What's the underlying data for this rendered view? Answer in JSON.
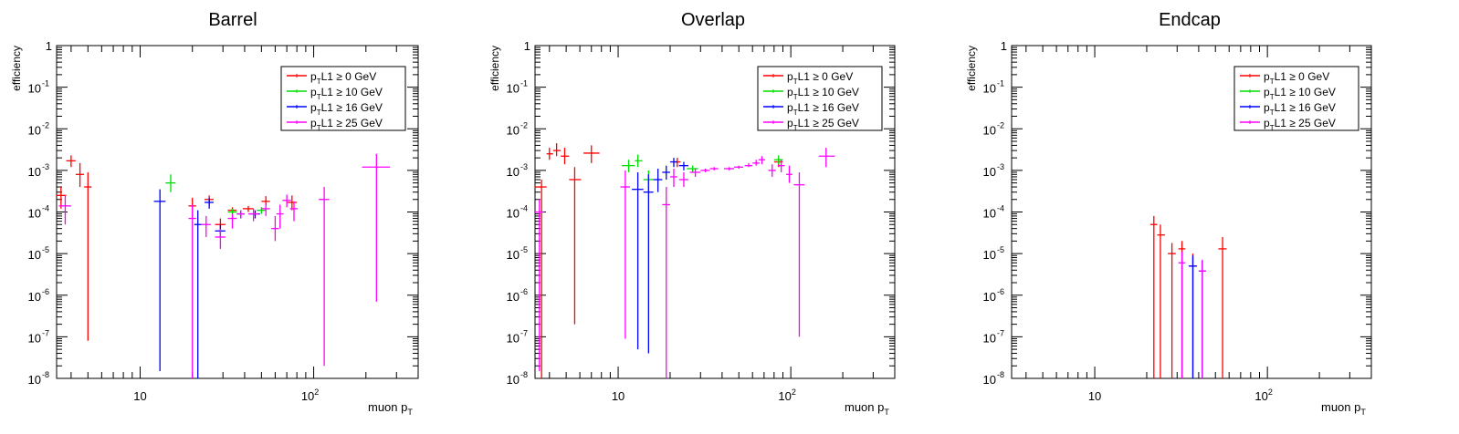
{
  "chart_data": [
    {
      "type": "scatter",
      "title": "Barrel",
      "xlabel": "muon p",
      "xlabel_sub": "T",
      "ylabel": "efficiency",
      "x_scale": "log",
      "y_scale": "log",
      "xlim": [
        3.3,
        400
      ],
      "ylim": [
        1e-08,
        1
      ],
      "x_tick_labels": [
        "10",
        "10^2"
      ],
      "y_tick_labels": [
        "10^-8",
        "10^-7",
        "10^-6",
        "10^-5",
        "10^-4",
        "10^-3",
        "10^-2",
        "10^-1",
        "1"
      ],
      "legend_position": "top-right",
      "series": [
        {
          "name": "p_T L1 ≥ 0 GeV",
          "color": "#ff0000",
          "points": [
            {
              "x": 3.5,
              "xlo": 3.3,
              "xhi": 3.75,
              "y": 0.00025,
              "ylo": 0.00012,
              "yhi": 0.0004
            },
            {
              "x": 4.0,
              "xlo": 3.75,
              "xhi": 4.25,
              "y": 0.0017,
              "ylo": 0.0012,
              "yhi": 0.0023
            },
            {
              "x": 4.5,
              "xlo": 4.25,
              "xhi": 4.75,
              "y": 0.0008,
              "ylo": 0.0004,
              "yhi": 0.0015
            },
            {
              "x": 5.0,
              "xlo": 4.75,
              "xhi": 5.25,
              "y": 0.0004,
              "ylo": 8e-08,
              "yhi": 0.0009
            },
            {
              "x": 20,
              "xlo": 19,
              "xhi": 21,
              "y": 0.00014,
              "ylo": 7e-05,
              "yhi": 0.00022
            },
            {
              "x": 25,
              "xlo": 23.5,
              "xhi": 26.5,
              "y": 0.0002,
              "ylo": 0.00014,
              "yhi": 0.00025
            },
            {
              "x": 29,
              "xlo": 27,
              "xhi": 31,
              "y": 5e-05,
              "ylo": 3e-05,
              "yhi": 7e-05
            },
            {
              "x": 34,
              "xlo": 32,
              "xhi": 36,
              "y": 0.00011,
              "ylo": 9e-05,
              "yhi": 0.00013
            },
            {
              "x": 42,
              "xlo": 39,
              "xhi": 45,
              "y": 0.00012,
              "ylo": 0.0001,
              "yhi": 0.00014
            },
            {
              "x": 53,
              "xlo": 50,
              "xhi": 56,
              "y": 0.00018,
              "ylo": 0.00014,
              "yhi": 0.00024
            },
            {
              "x": 75,
              "xlo": 70,
              "xhi": 80,
              "y": 0.00017,
              "ylo": 0.00011,
              "yhi": 0.00025
            }
          ]
        },
        {
          "name": "p_T L1 ≥ 10 GeV",
          "color": "#00dd00",
          "points": [
            {
              "x": 15,
              "xlo": 14,
              "xhi": 16,
              "y": 0.0005,
              "ylo": 0.0003,
              "yhi": 0.0008
            },
            {
              "x": 34,
              "xlo": 32,
              "xhi": 36,
              "y": 0.0001,
              "ylo": 8e-05,
              "yhi": 0.00012
            },
            {
              "x": 50,
              "xlo": 47,
              "xhi": 53,
              "y": 0.00011,
              "ylo": 9e-05,
              "yhi": 0.00013
            }
          ]
        },
        {
          "name": "p_T L1 ≥ 16 GeV",
          "color": "#0000ff",
          "points": [
            {
              "x": 13,
              "xlo": 12,
              "xhi": 14,
              "y": 0.00018,
              "ylo": 1.5e-08,
              "yhi": 0.00035
            },
            {
              "x": 21.5,
              "xlo": 20.5,
              "xhi": 22.5,
              "y": 5e-05,
              "ylo": 1e-08,
              "yhi": 0.00011
            },
            {
              "x": 25,
              "xlo": 23.5,
              "xhi": 26.5,
              "y": 0.00017,
              "ylo": 0.00012,
              "yhi": 0.00022
            },
            {
              "x": 29,
              "xlo": 27,
              "xhi": 31,
              "y": 3.5e-05,
              "ylo": 2.5e-05,
              "yhi": 5e-05
            },
            {
              "x": 38,
              "xlo": 36,
              "xhi": 40,
              "y": 9e-05,
              "ylo": 7e-05,
              "yhi": 0.00011
            },
            {
              "x": 46,
              "xlo": 43,
              "xhi": 49,
              "y": 9e-05,
              "ylo": 7e-05,
              "yhi": 0.00011
            }
          ]
        },
        {
          "name": "p_T L1 ≥ 25 GeV",
          "color": "#ff00ff",
          "points": [
            {
              "x": 3.7,
              "xlo": 3.4,
              "xhi": 4.0,
              "y": 0.00014,
              "ylo": 5e-05,
              "yhi": 0.00025
            },
            {
              "x": 20,
              "xlo": 19,
              "xhi": 21,
              "y": 7e-05,
              "ylo": 1e-08,
              "yhi": 0.00015
            },
            {
              "x": 24,
              "xlo": 22.5,
              "xhi": 25.5,
              "y": 5e-05,
              "ylo": 2.5e-05,
              "yhi": 8e-05
            },
            {
              "x": 29,
              "xlo": 27,
              "xhi": 31,
              "y": 2.5e-05,
              "ylo": 1.3e-05,
              "yhi": 4e-05
            },
            {
              "x": 34,
              "xlo": 32,
              "xhi": 36,
              "y": 7e-05,
              "ylo": 4e-05,
              "yhi": 9e-05
            },
            {
              "x": 38,
              "xlo": 36,
              "xhi": 40,
              "y": 9e-05,
              "ylo": 7e-05,
              "yhi": 0.00011
            },
            {
              "x": 45,
              "xlo": 42,
              "xhi": 48,
              "y": 9e-05,
              "ylo": 6e-05,
              "yhi": 0.00012
            },
            {
              "x": 53,
              "xlo": 50,
              "xhi": 56,
              "y": 0.00012,
              "ylo": 8e-05,
              "yhi": 0.00016
            },
            {
              "x": 60,
              "xlo": 57,
              "xhi": 63,
              "y": 4e-05,
              "ylo": 2e-05,
              "yhi": 8e-05
            },
            {
              "x": 64,
              "xlo": 61,
              "xhi": 67,
              "y": 9e-05,
              "ylo": 4e-05,
              "yhi": 0.00015
            },
            {
              "x": 70,
              "xlo": 66,
              "xhi": 74,
              "y": 0.00019,
              "ylo": 0.00013,
              "yhi": 0.00026
            },
            {
              "x": 77,
              "xlo": 73,
              "xhi": 81,
              "y": 0.00012,
              "ylo": 6e-05,
              "yhi": 0.00018
            },
            {
              "x": 115,
              "xlo": 107,
              "xhi": 123,
              "y": 0.0002,
              "ylo": 2e-08,
              "yhi": 0.0004
            },
            {
              "x": 230,
              "xlo": 190,
              "xhi": 275,
              "y": 0.0012,
              "ylo": 7e-07,
              "yhi": 0.0025
            }
          ]
        }
      ]
    },
    {
      "type": "scatter",
      "title": "Overlap",
      "xlabel": "muon p",
      "xlabel_sub": "T",
      "ylabel": "efficiency",
      "x_scale": "log",
      "y_scale": "log",
      "xlim": [
        3.3,
        400
      ],
      "ylim": [
        1e-08,
        1
      ],
      "x_tick_labels": [
        "10",
        "10^2"
      ],
      "y_tick_labels": [
        "10^-8",
        "10^-7",
        "10^-6",
        "10^-5",
        "10^-4",
        "10^-3",
        "10^-2",
        "10^-1",
        "1"
      ],
      "legend_position": "top-right",
      "series": [
        {
          "name": "p_T L1 ≥ 0 GeV",
          "color": "#ff0000",
          "points": [
            {
              "x": 3.6,
              "xlo": 3.3,
              "xhi": 3.85,
              "y": 0.0004,
              "ylo": 1e-08,
              "yhi": 0.0006
            },
            {
              "x": 4.0,
              "xlo": 3.85,
              "xhi": 4.2,
              "y": 0.0025,
              "ylo": 0.0018,
              "yhi": 0.0035
            },
            {
              "x": 4.4,
              "xlo": 4.2,
              "xhi": 4.65,
              "y": 0.003,
              "ylo": 0.0022,
              "yhi": 0.0045
            },
            {
              "x": 4.9,
              "xlo": 4.65,
              "xhi": 5.2,
              "y": 0.0022,
              "ylo": 0.0014,
              "yhi": 0.0035
            },
            {
              "x": 5.6,
              "xlo": 5.2,
              "xhi": 6.1,
              "y": 0.0006,
              "ylo": 2e-07,
              "yhi": 0.0012
            },
            {
              "x": 7.0,
              "xlo": 6.3,
              "xhi": 7.8,
              "y": 0.0026,
              "ylo": 0.0015,
              "yhi": 0.004
            },
            {
              "x": 22,
              "xlo": 21,
              "xhi": 23,
              "y": 0.0016,
              "ylo": 0.0012,
              "yhi": 0.002
            },
            {
              "x": 85,
              "xlo": 80,
              "xhi": 90,
              "y": 0.0016,
              "ylo": 0.0012,
              "yhi": 0.002
            }
          ]
        },
        {
          "name": "p_T L1 ≥ 10 GeV",
          "color": "#00dd00",
          "points": [
            {
              "x": 11.5,
              "xlo": 10.5,
              "xhi": 12.5,
              "y": 0.0013,
              "ylo": 0.0009,
              "yhi": 0.0018
            },
            {
              "x": 13,
              "xlo": 12.5,
              "xhi": 13.8,
              "y": 0.0017,
              "ylo": 0.0012,
              "yhi": 0.0024
            },
            {
              "x": 15,
              "xlo": 14,
              "xhi": 16,
              "y": 0.0006,
              "ylo": 0.0003,
              "yhi": 0.001
            },
            {
              "x": 27,
              "xlo": 25,
              "xhi": 29,
              "y": 0.0011,
              "ylo": 0.0009,
              "yhi": 0.0013
            },
            {
              "x": 85,
              "xlo": 80,
              "xhi": 90,
              "y": 0.0018,
              "ylo": 0.0014,
              "yhi": 0.0023
            }
          ]
        },
        {
          "name": "p_T L1 ≥ 16 GeV",
          "color": "#0000ff",
          "points": [
            {
              "x": 13,
              "xlo": 12,
              "xhi": 14,
              "y": 0.00035,
              "ylo": 5e-08,
              "yhi": 0.0009
            },
            {
              "x": 15,
              "xlo": 14,
              "xhi": 16,
              "y": 0.0003,
              "ylo": 4e-08,
              "yhi": 0.0008
            },
            {
              "x": 17,
              "xlo": 16,
              "xhi": 18,
              "y": 0.0006,
              "ylo": 0.0003,
              "yhi": 0.0011
            },
            {
              "x": 19,
              "xlo": 18,
              "xhi": 20,
              "y": 0.0009,
              "ylo": 0.0006,
              "yhi": 0.0013
            },
            {
              "x": 21,
              "xlo": 20,
              "xhi": 22,
              "y": 0.0016,
              "ylo": 0.0012,
              "yhi": 0.002
            },
            {
              "x": 24,
              "xlo": 22.5,
              "xhi": 25.5,
              "y": 0.0013,
              "ylo": 0.001,
              "yhi": 0.0016
            }
          ]
        },
        {
          "name": "p_T L1 ≥ 25 GeV",
          "color": "#ff00ff",
          "points": [
            {
              "x": 3.5,
              "xlo": 3.3,
              "xhi": 3.7,
              "y": 0.0001,
              "ylo": 1.5e-08,
              "yhi": 0.0002
            },
            {
              "x": 11,
              "xlo": 10.3,
              "xhi": 11.7,
              "y": 0.0004,
              "ylo": 9e-08,
              "yhi": 0.001
            },
            {
              "x": 19,
              "xlo": 18,
              "xhi": 20,
              "y": 0.00015,
              "ylo": 1e-08,
              "yhi": 0.0004
            },
            {
              "x": 21,
              "xlo": 20,
              "xhi": 22,
              "y": 0.0007,
              "ylo": 0.0004,
              "yhi": 0.0011
            },
            {
              "x": 24,
              "xlo": 22.5,
              "xhi": 25.5,
              "y": 0.0006,
              "ylo": 0.0004,
              "yhi": 0.0009
            },
            {
              "x": 28,
              "xlo": 26,
              "xhi": 30,
              "y": 0.0009,
              "ylo": 0.0007,
              "yhi": 0.0011
            },
            {
              "x": 32,
              "xlo": 30,
              "xhi": 34,
              "y": 0.001,
              "ylo": 0.0009,
              "yhi": 0.0011
            },
            {
              "x": 36,
              "xlo": 34,
              "xhi": 38,
              "y": 0.0011,
              "ylo": 0.001,
              "yhi": 0.0012
            },
            {
              "x": 44,
              "xlo": 41,
              "xhi": 47,
              "y": 0.0011,
              "ylo": 0.001,
              "yhi": 0.0012
            },
            {
              "x": 50,
              "xlo": 47,
              "xhi": 53,
              "y": 0.0012,
              "ylo": 0.0011,
              "yhi": 0.0013
            },
            {
              "x": 57,
              "xlo": 54,
              "xhi": 60,
              "y": 0.0013,
              "ylo": 0.0012,
              "yhi": 0.0015
            },
            {
              "x": 63,
              "xlo": 60,
              "xhi": 66,
              "y": 0.0015,
              "ylo": 0.0013,
              "yhi": 0.0018
            },
            {
              "x": 68,
              "xlo": 65,
              "xhi": 71,
              "y": 0.0018,
              "ylo": 0.0014,
              "yhi": 0.0022
            },
            {
              "x": 78,
              "xlo": 74,
              "xhi": 82,
              "y": 0.001,
              "ylo": 0.0007,
              "yhi": 0.0014
            },
            {
              "x": 88,
              "xlo": 84,
              "xhi": 92,
              "y": 0.0013,
              "ylo": 0.0009,
              "yhi": 0.0018
            },
            {
              "x": 98,
              "xlo": 94,
              "xhi": 102,
              "y": 0.0008,
              "ylo": 0.0005,
              "yhi": 0.0013
            },
            {
              "x": 112,
              "xlo": 104,
              "xhi": 120,
              "y": 0.00045,
              "ylo": 1e-07,
              "yhi": 0.0009
            },
            {
              "x": 160,
              "xlo": 145,
              "xhi": 180,
              "y": 0.0022,
              "ylo": 0.0012,
              "yhi": 0.0035
            }
          ]
        }
      ]
    },
    {
      "type": "scatter",
      "title": "Endcap",
      "xlabel": "muon p",
      "xlabel_sub": "T",
      "ylabel": "efficiency",
      "x_scale": "log",
      "y_scale": "log",
      "xlim": [
        3.3,
        400
      ],
      "ylim": [
        1e-08,
        1
      ],
      "x_tick_labels": [
        "10",
        "10^2"
      ],
      "y_tick_labels": [
        "10^-8",
        "10^-7",
        "10^-6",
        "10^-5",
        "10^-4",
        "10^-3",
        "10^-2",
        "10^-1",
        "1"
      ],
      "legend_position": "top-right",
      "series": [
        {
          "name": "p_T L1 ≥ 0 GeV",
          "color": "#ff0000",
          "points": [
            {
              "x": 22,
              "xlo": 21,
              "xhi": 23,
              "y": 5e-05,
              "ylo": 1e-08,
              "yhi": 8e-05
            },
            {
              "x": 24,
              "xlo": 23,
              "xhi": 25.5,
              "y": 2.8e-05,
              "ylo": 1e-08,
              "yhi": 5e-05
            },
            {
              "x": 28,
              "xlo": 26.5,
              "xhi": 29.5,
              "y": 1e-05,
              "ylo": 1e-08,
              "yhi": 1.8e-05
            },
            {
              "x": 32,
              "xlo": 30.5,
              "xhi": 33.5,
              "y": 1.3e-05,
              "ylo": 1e-08,
              "yhi": 2e-05
            },
            {
              "x": 37,
              "xlo": 35,
              "xhi": 39,
              "y": 5e-06,
              "ylo": 1e-08,
              "yhi": 1e-05
            },
            {
              "x": 55,
              "xlo": 52,
              "xhi": 58,
              "y": 1.3e-05,
              "ylo": 1e-08,
              "yhi": 2.5e-05
            }
          ]
        },
        {
          "name": "p_T L1 ≥ 10 GeV",
          "color": "#00dd00",
          "points": []
        },
        {
          "name": "p_T L1 ≥ 16 GeV",
          "color": "#0000ff",
          "points": [
            {
              "x": 37,
              "xlo": 35,
              "xhi": 39,
              "y": 5e-06,
              "ylo": 1e-08,
              "yhi": 9e-06
            },
            {
              "x": 42,
              "xlo": 40,
              "xhi": 44,
              "y": 3.8e-06,
              "ylo": 1e-08,
              "yhi": 7e-06
            }
          ]
        },
        {
          "name": "p_T L1 ≥ 25 GeV",
          "color": "#ff00ff",
          "points": [
            {
              "x": 32,
              "xlo": 30.5,
              "xhi": 33.5,
              "y": 6e-06,
              "ylo": 1e-08,
              "yhi": 1.1e-05
            },
            {
              "x": 42,
              "xlo": 40,
              "xhi": 44,
              "y": 3.8e-06,
              "ylo": 1e-08,
              "yhi": 7e-06
            }
          ]
        }
      ]
    }
  ]
}
